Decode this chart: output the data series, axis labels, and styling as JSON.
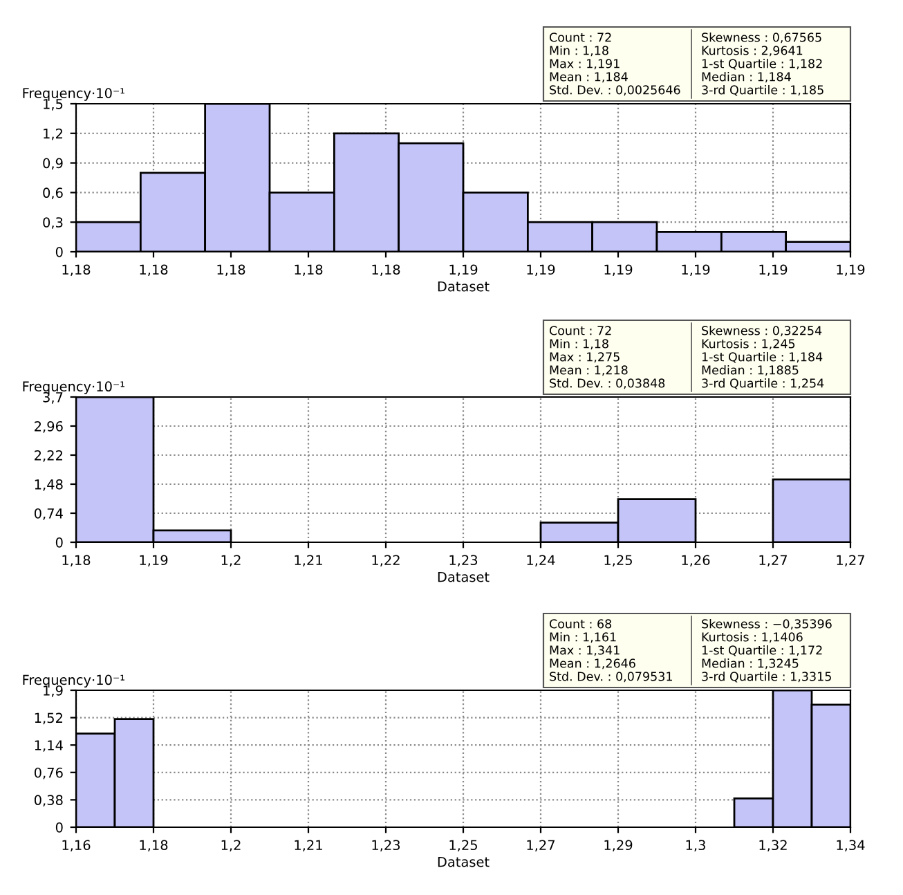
{
  "chart_data": [
    {
      "type": "histogram",
      "ylabel": "Frequency·10⁻¹",
      "xlabel": "Dataset",
      "color": "#c4c4f8",
      "grid": true,
      "bins": [
        1.18,
        1.180917,
        1.181833,
        1.18275,
        1.183667,
        1.184583,
        1.1855,
        1.186417,
        1.187333,
        1.18825,
        1.189167,
        1.190083,
        1.191
      ],
      "values": [
        0.3,
        0.8,
        1.5,
        0.6,
        1.2,
        1.1,
        0.6,
        0.3,
        0.3,
        0.2,
        0.2,
        0.1
      ],
      "xlim": [
        1.18,
        1.191
      ],
      "xticks": [
        {
          "value": 1.18,
          "label": "1,18"
        },
        {
          "value": 1.1811,
          "label": "1,18"
        },
        {
          "value": 1.1822,
          "label": "1,18"
        },
        {
          "value": 1.1833,
          "label": "1,18"
        },
        {
          "value": 1.1844,
          "label": "1,18"
        },
        {
          "value": 1.1855,
          "label": "1,19"
        },
        {
          "value": 1.1866,
          "label": "1,19"
        },
        {
          "value": 1.1877,
          "label": "1,19"
        },
        {
          "value": 1.1888,
          "label": "1,19"
        },
        {
          "value": 1.1899,
          "label": "1,19"
        },
        {
          "value": 1.191,
          "label": "1,19"
        }
      ],
      "ylim": [
        0,
        1.5
      ],
      "yticks": [
        0,
        {
          "value": 0.3,
          "label": "0,3"
        },
        {
          "value": 0.6,
          "label": "0,6"
        },
        {
          "value": 0.9,
          "label": "0,9"
        },
        {
          "value": 1.2,
          "label": "1,2"
        },
        {
          "value": 1.5,
          "label": "1,5"
        }
      ],
      "annotations": [
        "Count : 72",
        "Skewness : 0,67565",
        "Min : 1,18",
        "Kurtosis : 2,9641",
        "Max : 1,191",
        "1-st Quartile : 1,182",
        "Mean : 1,184",
        "Median : 1,184",
        "Std. Dev. : 0,0025646",
        "3-rd Quartile : 1,185"
      ]
    },
    {
      "type": "histogram",
      "ylabel": "Frequency·10⁻¹",
      "xlabel": "Dataset",
      "color": "#c4c4f8",
      "grid": true,
      "bins": [
        1.18,
        1.1895,
        1.199,
        1.2085,
        1.218,
        1.2275,
        1.237,
        1.2465,
        1.256,
        1.2655,
        1.275
      ],
      "values": [
        3.7,
        0.3,
        0,
        0,
        0,
        0,
        0.5,
        1.1,
        0,
        1.6
      ],
      "xlim": [
        1.18,
        1.275
      ],
      "xticks": [
        {
          "value": 1.18,
          "label": "1,18"
        },
        {
          "value": 1.1895,
          "label": "1,19"
        },
        {
          "value": 1.199,
          "label": "1,2"
        },
        {
          "value": 1.2085,
          "label": "1,21"
        },
        {
          "value": 1.218,
          "label": "1,22"
        },
        {
          "value": 1.2275,
          "label": "1,23"
        },
        {
          "value": 1.237,
          "label": "1,24"
        },
        {
          "value": 1.2465,
          "label": "1,25"
        },
        {
          "value": 1.256,
          "label": "1,26"
        },
        {
          "value": 1.2655,
          "label": "1,27"
        },
        {
          "value": 1.275,
          "label": "1,27"
        }
      ],
      "ylim": [
        0,
        3.7
      ],
      "yticks": [
        0,
        {
          "value": 0.74,
          "label": "0,74"
        },
        {
          "value": 1.48,
          "label": "1,48"
        },
        {
          "value": 2.22,
          "label": "2,22"
        },
        {
          "value": 2.96,
          "label": "2,96"
        },
        {
          "value": 3.7,
          "label": "3,7"
        }
      ],
      "annotations": [
        "Count : 72",
        "Skewness : 0,32254",
        "Min : 1,18",
        "Kurtosis : 1,245",
        "Max : 1,275",
        "1-st Quartile : 1,184",
        "Mean : 1,218",
        "Median : 1,1885",
        "Std. Dev. : 0,03848",
        "3-rd Quartile : 1,254"
      ]
    },
    {
      "type": "histogram",
      "ylabel": "Frequency·10⁻¹",
      "xlabel": "Dataset",
      "color": "#c4c4f8",
      "grid": true,
      "bins": [
        1.161,
        1.17,
        1.179,
        1.188,
        1.197,
        1.206,
        1.215,
        1.224,
        1.233,
        1.242,
        1.251,
        1.26,
        1.269,
        1.278,
        1.287,
        1.296,
        1.305,
        1.314,
        1.323,
        1.332,
        1.341
      ],
      "values": [
        1.3,
        1.5,
        0,
        0,
        0,
        0,
        0,
        0,
        0,
        0,
        0,
        0,
        0,
        0,
        0,
        0,
        0,
        0.4,
        1.9,
        1.7
      ],
      "xlim": [
        1.161,
        1.341
      ],
      "xticks": [
        {
          "value": 1.161,
          "label": "1,16"
        },
        {
          "value": 1.179,
          "label": "1,18"
        },
        {
          "value": 1.197,
          "label": "1,2"
        },
        {
          "value": 1.215,
          "label": "1,21"
        },
        {
          "value": 1.233,
          "label": "1,23"
        },
        {
          "value": 1.251,
          "label": "1,25"
        },
        {
          "value": 1.269,
          "label": "1,27"
        },
        {
          "value": 1.287,
          "label": "1,29"
        },
        {
          "value": 1.305,
          "label": "1,3"
        },
        {
          "value": 1.323,
          "label": "1,32"
        },
        {
          "value": 1.341,
          "label": "1,34"
        }
      ],
      "ylim": [
        0,
        1.9
      ],
      "yticks": [
        0,
        {
          "value": 0.38,
          "label": "0,38"
        },
        {
          "value": 0.76,
          "label": "0,76"
        },
        {
          "value": 1.14,
          "label": "1,14"
        },
        {
          "value": 1.52,
          "label": "1,52"
        },
        {
          "value": 1.9,
          "label": "1,9"
        }
      ],
      "annotations": [
        "Count : 68",
        "Skewness : −0,35396",
        "Min : 1,161",
        "Kurtosis : 1,1406",
        "Max : 1,341",
        "1-st Quartile : 1,172",
        "Mean : 1,2646",
        "Median : 1,3245",
        "Std. Dev. : 0,079531",
        "3-rd Quartile : 1,3315"
      ]
    }
  ]
}
